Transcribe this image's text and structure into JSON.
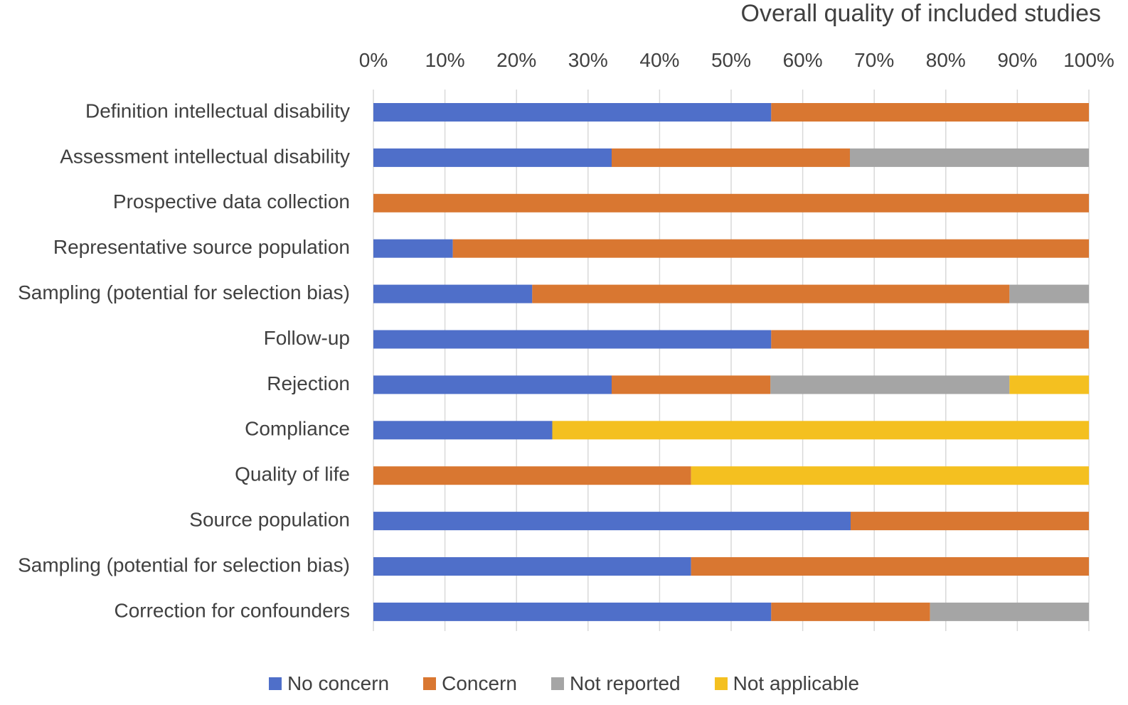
{
  "chart_data": {
    "type": "bar",
    "orientation": "horizontal",
    "stacked": true,
    "title": "Overall quality of included studies",
    "xlabel": "",
    "ylabel": "",
    "xlim": [
      0,
      100
    ],
    "x_ticks": [
      "0%",
      "10%",
      "20%",
      "30%",
      "40%",
      "50%",
      "60%",
      "70%",
      "80%",
      "90%",
      "100%"
    ],
    "grid": true,
    "legend_position": "bottom",
    "categories": [
      "Definition intellectual disability",
      "Assessment intellectual disability",
      "Prospective data collection",
      "Representative source population",
      "Sampling (potential for selection bias)",
      "Follow-up",
      "Rejection",
      "Compliance",
      "Quality of life",
      "Source population",
      "Sampling (potential for selection bias)",
      "Correction for confounders"
    ],
    "series": [
      {
        "name": "No concern",
        "color": "#4f6fc9",
        "values": [
          55.6,
          33.3,
          0,
          11.1,
          22.2,
          55.6,
          33.3,
          25,
          0,
          66.7,
          44.4,
          55.6
        ]
      },
      {
        "name": "Concern",
        "color": "#d97731",
        "values": [
          44.4,
          33.3,
          100,
          88.9,
          66.7,
          44.4,
          22.2,
          0,
          44.4,
          33.3,
          55.6,
          22.2
        ]
      },
      {
        "name": "Not reported",
        "color": "#a5a5a5",
        "values": [
          0,
          33.4,
          0,
          0,
          11.1,
          0,
          33.4,
          0,
          0,
          0,
          0,
          22.2
        ]
      },
      {
        "name": "Not applicable",
        "color": "#f4c020",
        "values": [
          0,
          0,
          0,
          0,
          0,
          0,
          11.1,
          75,
          55.6,
          0,
          0,
          0
        ]
      }
    ]
  }
}
